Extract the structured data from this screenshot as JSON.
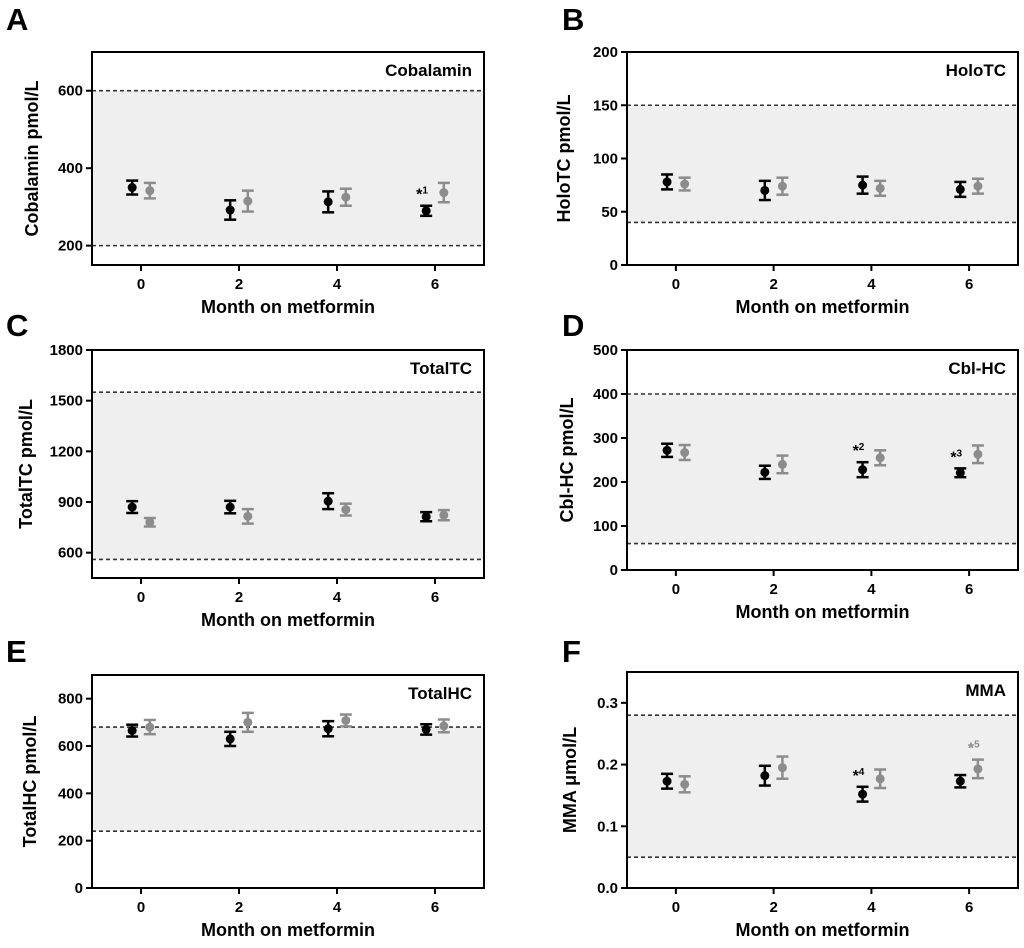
{
  "colors": {
    "series_a": "#000000",
    "series_b": "#8c8c8c",
    "reference_band": "#efefef",
    "reference_line": "#333333"
  },
  "chart_data": [
    {
      "panel": "A",
      "type": "scatter",
      "title": "Cobalamin",
      "xlabel": "Month on metformin",
      "ylabel": "Cobalamin pmol/L",
      "xticks": [
        0,
        2,
        4,
        6
      ],
      "xlim": [
        -1,
        7
      ],
      "yticks": [
        200,
        400,
        600
      ],
      "ylim": [
        150,
        700
      ],
      "reference_range": [
        200,
        600
      ],
      "series": [
        {
          "color": "#000000",
          "x": [
            0,
            2,
            4,
            6
          ],
          "y": [
            350,
            292,
            313,
            290
          ],
          "err": [
            18,
            25,
            27,
            13
          ]
        },
        {
          "color": "#8c8c8c",
          "x": [
            0,
            2,
            4,
            6
          ],
          "y": [
            342,
            315,
            325,
            337
          ],
          "err": [
            20,
            27,
            22,
            25
          ]
        }
      ],
      "annotations": [
        {
          "text": "*",
          "sup": "1",
          "x": 6,
          "y": 290,
          "series": 0
        }
      ]
    },
    {
      "panel": "B",
      "type": "scatter",
      "title": "HoloTC",
      "xlabel": "Month on metformin",
      "ylabel": "HoloTC pmol/L",
      "xticks": [
        0,
        2,
        4,
        6
      ],
      "xlim": [
        -1,
        7
      ],
      "yticks": [
        0,
        50,
        100,
        150,
        200
      ],
      "ylim": [
        0,
        200
      ],
      "reference_range": [
        40,
        150
      ],
      "series": [
        {
          "color": "#000000",
          "x": [
            0,
            2,
            4,
            6
          ],
          "y": [
            78,
            70,
            75,
            71
          ],
          "err": [
            7,
            9,
            8,
            7
          ]
        },
        {
          "color": "#8c8c8c",
          "x": [
            0,
            2,
            4,
            6
          ],
          "y": [
            76,
            74,
            72,
            74
          ],
          "err": [
            6,
            8,
            7,
            7
          ]
        }
      ],
      "annotations": []
    },
    {
      "panel": "C",
      "type": "scatter",
      "title": "TotalTC",
      "xlabel": "Month on metformin",
      "ylabel": "TotalTC pmol/L",
      "xticks": [
        0,
        2,
        4,
        6
      ],
      "xlim": [
        -1,
        7
      ],
      "yticks": [
        600,
        900,
        1200,
        1500,
        1800
      ],
      "ylim": [
        450,
        1800
      ],
      "reference_range": [
        560,
        1550
      ],
      "series": [
        {
          "color": "#000000",
          "x": [
            0,
            2,
            4,
            6
          ],
          "y": [
            870,
            870,
            905,
            813
          ],
          "err": [
            35,
            37,
            47,
            27
          ]
        },
        {
          "color": "#8c8c8c",
          "x": [
            0,
            2,
            4,
            6
          ],
          "y": [
            780,
            815,
            855,
            822
          ],
          "err": [
            25,
            43,
            35,
            30
          ]
        }
      ],
      "annotations": []
    },
    {
      "panel": "D",
      "type": "scatter",
      "title": "Cbl-HC",
      "xlabel": "Month on metformin",
      "ylabel": "Cbl-HC pmol/L",
      "xticks": [
        0,
        2,
        4,
        6
      ],
      "xlim": [
        -1,
        7
      ],
      "yticks": [
        0,
        100,
        200,
        300,
        400,
        500
      ],
      "ylim": [
        0,
        500
      ],
      "reference_range": [
        60,
        400
      ],
      "series": [
        {
          "color": "#000000",
          "x": [
            0,
            2,
            4,
            6
          ],
          "y": [
            272,
            222,
            228,
            221
          ],
          "err": [
            15,
            15,
            17,
            10
          ]
        },
        {
          "color": "#8c8c8c",
          "x": [
            0,
            2,
            4,
            6
          ],
          "y": [
            267,
            240,
            255,
            263
          ],
          "err": [
            17,
            20,
            17,
            20
          ]
        }
      ],
      "annotations": [
        {
          "text": "*",
          "sup": "2",
          "x": 4,
          "y": 228,
          "series": 0
        },
        {
          "text": "*",
          "sup": "3",
          "x": 6,
          "y": 221,
          "series": 0
        }
      ]
    },
    {
      "panel": "E",
      "type": "scatter",
      "title": "TotalHC",
      "xlabel": "Month on metformin",
      "ylabel": "TotalHC pmol/L",
      "xticks": [
        0,
        2,
        4,
        6
      ],
      "xlim": [
        -1,
        7
      ],
      "yticks": [
        0,
        200,
        400,
        600,
        800
      ],
      "ylim": [
        0,
        900
      ],
      "reference_range": [
        240,
        680
      ],
      "series": [
        {
          "color": "#000000",
          "x": [
            0,
            2,
            4,
            6
          ],
          "y": [
            665,
            630,
            673,
            670
          ],
          "err": [
            25,
            30,
            32,
            22
          ]
        },
        {
          "color": "#8c8c8c",
          "x": [
            0,
            2,
            4,
            6
          ],
          "y": [
            680,
            700,
            708,
            685
          ],
          "err": [
            30,
            40,
            25,
            27
          ]
        }
      ],
      "annotations": []
    },
    {
      "panel": "F",
      "type": "scatter",
      "title": "MMA",
      "xlabel": "Month on metformin",
      "ylabel": "MMA μmol/L",
      "xticks": [
        0,
        2,
        4,
        6
      ],
      "xlim": [
        -1,
        7
      ],
      "yticks": [
        0.0,
        0.1,
        0.2,
        0.3
      ],
      "ytick_labels": [
        "0.0",
        "0.1",
        "0.2",
        "0.3"
      ],
      "ylim": [
        0,
        0.35
      ],
      "reference_range": [
        0.05,
        0.28
      ],
      "series": [
        {
          "color": "#000000",
          "x": [
            0,
            2,
            4,
            6
          ],
          "y": [
            0.173,
            0.182,
            0.152,
            0.173
          ],
          "err": [
            0.012,
            0.016,
            0.012,
            0.01
          ]
        },
        {
          "color": "#8c8c8c",
          "x": [
            0,
            2,
            4,
            6
          ],
          "y": [
            0.168,
            0.195,
            0.177,
            0.193
          ],
          "err": [
            0.013,
            0.018,
            0.015,
            0.015
          ]
        }
      ],
      "annotations": [
        {
          "text": "*",
          "sup": "4",
          "x": 4,
          "y": 0.152,
          "series": 0
        },
        {
          "text": "*",
          "sup": "5",
          "x": 6,
          "y": 0.193,
          "series": 1
        }
      ]
    }
  ]
}
